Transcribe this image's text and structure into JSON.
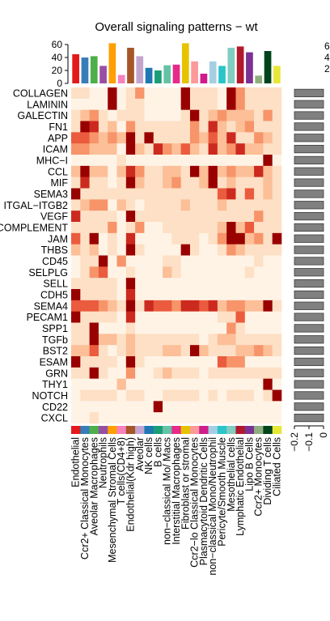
{
  "chart_data": {
    "type": "heatmap",
    "title": "Overall signaling patterns − wt",
    "rows": [
      "COLLAGEN",
      "LAMININ",
      "GALECTIN",
      "FN1",
      "APP",
      "ICAM",
      "MHC-I",
      "CCL",
      "MIF",
      "SEMA3",
      "ITGAL-ITGB2",
      "VEGF",
      "COMPLEMENT",
      "JAM",
      "THBS",
      "CD45",
      "SELPLG",
      "SELL",
      "CDH5",
      "SEMA4",
      "PECAM1",
      "SPP1",
      "TGFb",
      "BST2",
      "ESAM",
      "GRN",
      "THY1",
      "NOTCH",
      "CD22",
      "CXCL"
    ],
    "row_labels_display": [
      "COLLAGEN",
      "LAMININ",
      "GALECTIN",
      "FN1",
      "APP",
      "ICAM",
      "MHC−I",
      "CCL",
      "MIF",
      "SEMA3",
      "ITGAL−ITGB2",
      "VEGF",
      "COMPLEMENT",
      "JAM",
      "THBS",
      "CD45",
      "SELPLG",
      "SELL",
      "CDH5",
      "SEMA4",
      "PECAM1",
      "SPP1",
      "TGFb",
      "BST2",
      "ESAM",
      "GRN",
      "THY1",
      "NOTCH",
      "CD22",
      "CXCL"
    ],
    "columns": [
      "Endothelial",
      "Ccr2+ Classical Monocytes",
      "Aveolar Macrophages",
      "Neutrophils",
      "Mesenchymal Stromal Cells",
      "T cells(CD4+8)",
      "Endothelial(Kdr high)",
      "Aveolar",
      "NK cells",
      "B cells",
      "non−classical Mo/ Macs",
      "Interstitial Macrophages",
      "Fibroblast or stromal",
      "Ccr2−lo Classical Monocytes",
      "Plasmacytoid Dendritic Cells",
      "non−classical Mono/Neutrophil",
      "Pericyte/Smooth Muscle",
      "Mesothelial cells",
      "Lymphatic Endothelial",
      "Lipo B Cells",
      "Ccr2+ Monocytes",
      "Dividing T cells",
      "Ciliated Cells"
    ],
    "column_colors": [
      "#e31a1c",
      "#377eb8",
      "#4daf4a",
      "#984ea3",
      "#ff9f00",
      "#f781bf",
      "#a65628",
      "#c2a5cf",
      "#1f78b4",
      "#1b9e77",
      "#66c2a5",
      "#e7298a",
      "#e6c300",
      "#fb9a99",
      "#d01c8b",
      "#a6cee3",
      "#2ac4c9",
      "#80cdc1",
      "#b2182b",
      "#7b3294",
      "#8fae7f",
      "#00441b",
      "#e7e737"
    ],
    "top_bar_values": [
      45,
      40,
      42,
      27,
      62,
      13,
      55,
      42,
      24,
      20,
      28,
      29,
      62,
      34,
      15,
      34,
      27,
      55,
      57,
      48,
      12,
      50,
      27
    ],
    "top_axis_ticks": [
      0,
      20,
      40,
      60
    ],
    "right_bar_values": [
      0.2,
      0.2,
      0.2,
      0.2,
      0.2,
      0.2,
      0.2,
      0.2,
      0.2,
      0.2,
      0.2,
      0.2,
      0.2,
      0.2,
      0.2,
      0.2,
      0.2,
      0.2,
      0.2,
      0.2,
      0.2,
      0.2,
      0.2,
      0.2,
      0.2,
      0.2,
      0.2,
      0.2,
      0.2,
      0.2
    ],
    "right_axis_ticks": [
      "−0.2",
      "−0.1",
      "0"
    ],
    "legend_ticks": [
      "6",
      "4",
      "2"
    ],
    "color_scale": [
      "#ffffff",
      "#fff3e6",
      "#fde0c5",
      "#fcbf98",
      "#f7946a",
      "#eb5b3e",
      "#cc2a1e",
      "#990000"
    ],
    "matrix": [
      [
        2,
        2,
        1,
        1,
        7,
        1,
        2,
        4,
        1,
        1,
        1,
        1,
        7,
        2,
        2,
        2,
        1,
        7,
        4,
        2,
        2,
        2,
        2
      ],
      [
        1,
        1,
        1,
        1,
        7,
        1,
        2,
        2,
        1,
        1,
        1,
        1,
        7,
        2,
        2,
        2,
        1,
        7,
        4,
        2,
        2,
        2,
        2
      ],
      [
        2,
        3,
        4,
        2,
        1,
        2,
        2,
        2,
        1,
        1,
        1,
        1,
        2,
        7,
        2,
        3,
        4,
        3,
        3,
        3,
        2,
        4,
        2
      ],
      [
        2,
        7,
        6,
        2,
        3,
        1,
        4,
        2,
        2,
        2,
        2,
        2,
        2,
        4,
        2,
        6,
        3,
        2,
        3,
        4,
        2,
        2,
        2
      ],
      [
        5,
        5,
        4,
        3,
        4,
        3,
        7,
        2,
        7,
        2,
        2,
        2,
        2,
        4,
        3,
        5,
        3,
        6,
        2,
        2,
        4,
        3,
        2
      ],
      [
        4,
        4,
        3,
        3,
        3,
        1,
        7,
        3,
        2,
        6,
        4,
        3,
        5,
        3,
        2,
        6,
        3,
        4,
        6,
        3,
        3,
        2,
        2
      ],
      [
        1,
        1,
        1,
        1,
        1,
        2,
        1,
        1,
        1,
        1,
        1,
        1,
        1,
        1,
        1,
        1,
        1,
        1,
        1,
        1,
        1,
        7,
        1
      ],
      [
        3,
        7,
        3,
        3,
        1,
        3,
        6,
        4,
        2,
        2,
        3,
        3,
        2,
        7,
        3,
        7,
        3,
        4,
        3,
        3,
        6,
        3,
        2
      ],
      [
        2,
        6,
        2,
        2,
        1,
        2,
        7,
        3,
        2,
        2,
        3,
        4,
        2,
        2,
        3,
        7,
        2,
        3,
        2,
        2,
        2,
        3,
        2
      ],
      [
        7,
        2,
        2,
        2,
        2,
        2,
        2,
        2,
        2,
        2,
        2,
        2,
        2,
        2,
        2,
        2,
        5,
        6,
        2,
        5,
        2,
        3,
        2
      ],
      [
        2,
        3,
        4,
        4,
        1,
        3,
        2,
        1,
        2,
        2,
        2,
        2,
        3,
        2,
        2,
        2,
        3,
        2,
        2,
        2,
        2,
        2,
        2
      ],
      [
        6,
        2,
        2,
        2,
        2,
        1,
        7,
        2,
        2,
        2,
        2,
        2,
        2,
        2,
        2,
        2,
        2,
        2,
        2,
        2,
        4,
        2,
        2
      ],
      [
        2,
        2,
        2,
        2,
        4,
        1,
        2,
        4,
        1,
        1,
        2,
        2,
        2,
        2,
        2,
        2,
        3,
        7,
        3,
        5,
        2,
        2,
        2
      ],
      [
        5,
        2,
        7,
        1,
        2,
        1,
        6,
        1,
        1,
        1,
        1,
        2,
        2,
        2,
        1,
        2,
        4,
        7,
        7,
        3,
        4,
        2,
        7
      ],
      [
        3,
        2,
        3,
        1,
        2,
        1,
        7,
        2,
        1,
        1,
        1,
        1,
        7,
        2,
        1,
        1,
        2,
        4,
        3,
        2,
        2,
        2,
        2
      ],
      [
        1,
        2,
        2,
        7,
        1,
        4,
        1,
        1,
        1,
        1,
        2,
        2,
        1,
        1,
        1,
        1,
        1,
        1,
        1,
        1,
        2,
        1,
        1
      ],
      [
        1,
        2,
        4,
        5,
        1,
        1,
        2,
        1,
        1,
        1,
        3,
        2,
        1,
        1,
        1,
        1,
        1,
        1,
        1,
        2,
        1,
        1,
        1
      ],
      [
        2,
        2,
        2,
        2,
        2,
        1,
        7,
        1,
        1,
        1,
        1,
        1,
        1,
        1,
        1,
        1,
        1,
        1,
        1,
        1,
        1,
        1,
        1
      ],
      [
        7,
        2,
        2,
        2,
        2,
        1,
        6,
        1,
        1,
        1,
        1,
        1,
        1,
        1,
        1,
        1,
        1,
        1,
        1,
        1,
        1,
        1,
        1
      ],
      [
        5,
        5,
        5,
        4,
        3,
        2,
        7,
        2,
        6,
        5,
        5,
        4,
        6,
        6,
        5,
        6,
        3,
        4,
        4,
        3,
        3,
        7,
        2
      ],
      [
        7,
        2,
        2,
        2,
        2,
        1,
        6,
        1,
        1,
        1,
        1,
        1,
        1,
        1,
        1,
        1,
        2,
        2,
        5,
        1,
        1,
        1,
        1
      ],
      [
        2,
        2,
        7,
        1,
        1,
        1,
        2,
        1,
        1,
        1,
        1,
        1,
        1,
        1,
        1,
        1,
        1,
        4,
        2,
        1,
        1,
        1,
        1
      ],
      [
        2,
        2,
        7,
        3,
        3,
        2,
        3,
        2,
        2,
        2,
        2,
        2,
        2,
        2,
        1,
        2,
        3,
        3,
        2,
        2,
        2,
        2,
        2
      ],
      [
        3,
        3,
        5,
        2,
        1,
        2,
        3,
        2,
        2,
        2,
        3,
        3,
        2,
        7,
        3,
        2,
        2,
        2,
        3,
        3,
        4,
        3,
        2
      ],
      [
        7,
        2,
        2,
        2,
        2,
        1,
        7,
        2,
        1,
        1,
        1,
        1,
        1,
        1,
        1,
        1,
        5,
        4,
        4,
        1,
        1,
        1,
        1
      ],
      [
        2,
        2,
        7,
        2,
        1,
        1,
        4,
        1,
        1,
        2,
        3,
        2,
        2,
        2,
        1,
        2,
        2,
        2,
        2,
        2,
        2,
        2,
        2
      ],
      [
        1,
        1,
        1,
        1,
        1,
        3,
        1,
        1,
        1,
        1,
        1,
        1,
        1,
        1,
        1,
        1,
        1,
        1,
        1,
        1,
        1,
        7,
        1
      ],
      [
        1,
        2,
        2,
        2,
        2,
        1,
        2,
        2,
        1,
        1,
        2,
        2,
        2,
        2,
        1,
        2,
        1,
        2,
        2,
        2,
        1,
        2,
        7
      ],
      [
        1,
        1,
        1,
        1,
        1,
        1,
        1,
        1,
        1,
        7,
        1,
        1,
        1,
        1,
        1,
        1,
        1,
        1,
        1,
        1,
        1,
        1,
        1
      ],
      [
        1,
        1,
        2,
        1,
        1,
        1,
        1,
        1,
        1,
        1,
        1,
        1,
        1,
        1,
        1,
        1,
        1,
        1,
        1,
        1,
        1,
        1,
        1
      ]
    ]
  }
}
